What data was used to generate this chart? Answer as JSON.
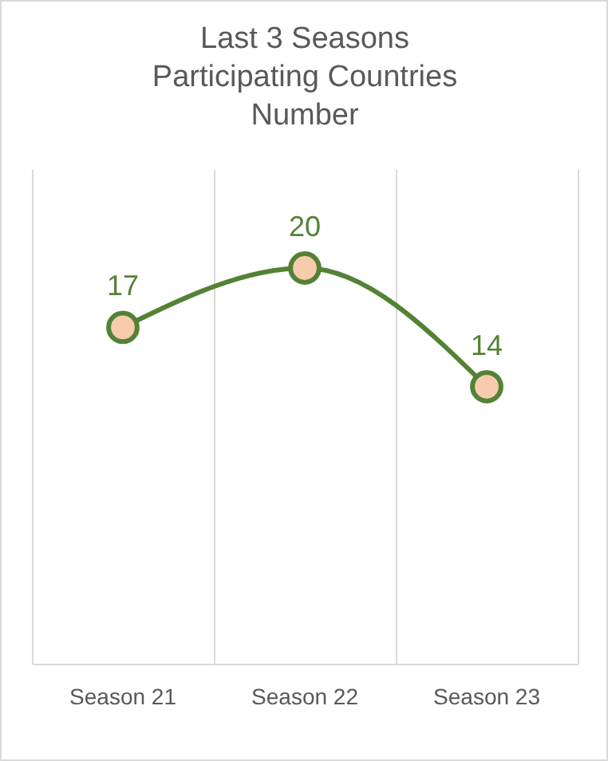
{
  "chart_data": {
    "type": "line",
    "title": "Last 3 Seasons\nParticipating Countries\nNumber",
    "categories": [
      "Season 21",
      "Season 22",
      "Season 23"
    ],
    "series": [
      {
        "color": "#548235",
        "values": [
          17,
          20,
          14
        ]
      }
    ],
    "ylim": [
      0,
      25
    ],
    "tick_labels": "x",
    "grid": "x",
    "marker": "circle",
    "data_labels": true,
    "line_style": "solid"
  }
}
